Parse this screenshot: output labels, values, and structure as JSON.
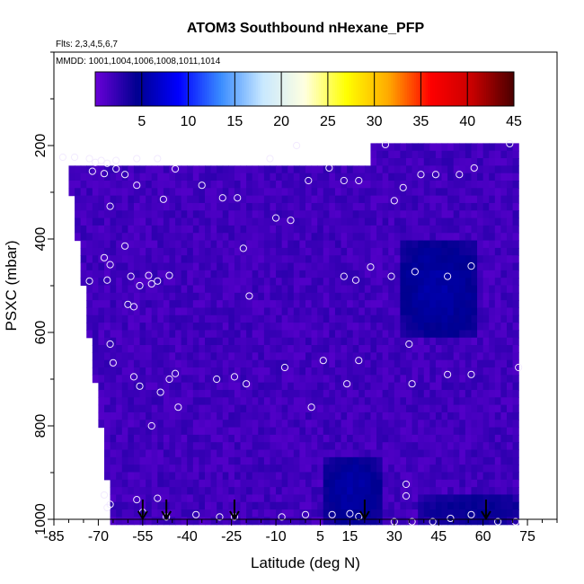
{
  "chart_data": {
    "type": "heatmap",
    "title": "ATOM3 Southbound nHexane_PFP",
    "subtitle_flights": "Flts: 2,3,4,5,6,7",
    "subtitle_dates": "MMDD: 1001,1004,1006,1008,1011,1014",
    "xlabel": "Latitude (deg N)",
    "ylabel": "PSXC (mbar)",
    "xlim": [
      -85,
      85
    ],
    "ylim": [
      1000,
      0
    ],
    "x_ticks": [
      -85,
      -70,
      -55,
      -40,
      -25,
      -10,
      5,
      15,
      30,
      45,
      60,
      75
    ],
    "y_ticks": [
      200,
      400,
      600,
      800,
      1000
    ],
    "colorbar": {
      "min": 0,
      "max": 45,
      "ticks": [
        5,
        10,
        15,
        20,
        25,
        30,
        35,
        40,
        45
      ],
      "stops": [
        "#6a00d8",
        "#000090",
        "#0000ff",
        "#3a8cff",
        "#c8e8ff",
        "#ffffe0",
        "#ffff00",
        "#ffaa00",
        "#ff0000",
        "#c80000",
        "#4a0000"
      ]
    },
    "field_region": {
      "lat_range": [
        -82,
        72
      ],
      "pres_range": [
        195,
        1000
      ],
      "upper_left_pressure_floor": 240,
      "upper_left_lat_limit": 22
    },
    "low_value_regions": [
      {
        "lat": [
          31,
          57
        ],
        "pres": [
          400,
          600
        ],
        "value": 5
      },
      {
        "lat": [
          6,
          24
        ],
        "pres": [
          860,
          1000
        ],
        "value": 5
      },
      {
        "lat": [
          38,
          72
        ],
        "pres": [
          940,
          1000
        ],
        "value": 4
      }
    ],
    "background_value": 1,
    "sample_points": [
      {
        "lat": -82,
        "p": 225
      },
      {
        "lat": -78,
        "p": 225
      },
      {
        "lat": -73,
        "p": 228
      },
      {
        "lat": -71,
        "p": 236
      },
      {
        "lat": -69,
        "p": 232
      },
      {
        "lat": -67,
        "p": 238
      },
      {
        "lat": -64,
        "p": 232
      },
      {
        "lat": -57,
        "p": 228
      },
      {
        "lat": -72,
        "p": 255
      },
      {
        "lat": -68,
        "p": 260
      },
      {
        "lat": -64,
        "p": 250
      },
      {
        "lat": -61,
        "p": 262
      },
      {
        "lat": -57,
        "p": 285
      },
      {
        "lat": -50,
        "p": 228
      },
      {
        "lat": -44,
        "p": 250
      },
      {
        "lat": -35,
        "p": 285
      },
      {
        "lat": -28,
        "p": 312
      },
      {
        "lat": -23,
        "p": 312
      },
      {
        "lat": -3,
        "p": 200
      },
      {
        "lat": 8,
        "p": 248
      },
      {
        "lat": 13,
        "p": 275
      },
      {
        "lat": 18,
        "p": 275
      },
      {
        "lat": 27,
        "p": 198
      },
      {
        "lat": -66,
        "p": 330
      },
      {
        "lat": -48,
        "p": 315
      },
      {
        "lat": -21,
        "p": 420
      },
      {
        "lat": -10,
        "p": 355
      },
      {
        "lat": -5,
        "p": 360
      },
      {
        "lat": 1,
        "p": 275
      },
      {
        "lat": -12,
        "p": 228
      },
      {
        "lat": 30,
        "p": 318
      },
      {
        "lat": 33,
        "p": 290
      },
      {
        "lat": 39,
        "p": 262
      },
      {
        "lat": 44,
        "p": 262
      },
      {
        "lat": 52,
        "p": 262
      },
      {
        "lat": 57,
        "p": 248
      },
      {
        "lat": 69,
        "p": 196
      },
      {
        "lat": -61,
        "p": 415
      },
      {
        "lat": -68,
        "p": 440
      },
      {
        "lat": -66,
        "p": 455
      },
      {
        "lat": -73,
        "p": 490
      },
      {
        "lat": -67,
        "p": 488
      },
      {
        "lat": -59,
        "p": 480
      },
      {
        "lat": -53,
        "p": 478
      },
      {
        "lat": -56,
        "p": 500
      },
      {
        "lat": -52,
        "p": 496
      },
      {
        "lat": -50,
        "p": 490
      },
      {
        "lat": -46,
        "p": 478
      },
      {
        "lat": -60,
        "p": 540
      },
      {
        "lat": -58,
        "p": 545
      },
      {
        "lat": -19,
        "p": 522
      },
      {
        "lat": 13,
        "p": 480
      },
      {
        "lat": 17,
        "p": 488
      },
      {
        "lat": 22,
        "p": 460
      },
      {
        "lat": 29,
        "p": 480
      },
      {
        "lat": 37,
        "p": 470
      },
      {
        "lat": 48,
        "p": 480
      },
      {
        "lat": 56,
        "p": 458
      },
      {
        "lat": -66,
        "p": 625
      },
      {
        "lat": -65,
        "p": 665
      },
      {
        "lat": -58,
        "p": 695
      },
      {
        "lat": -56,
        "p": 715
      },
      {
        "lat": -49,
        "p": 728
      },
      {
        "lat": -46,
        "p": 700
      },
      {
        "lat": -44,
        "p": 688
      },
      {
        "lat": -43,
        "p": 760
      },
      {
        "lat": -52,
        "p": 800
      },
      {
        "lat": -30,
        "p": 700
      },
      {
        "lat": -24,
        "p": 695
      },
      {
        "lat": -20,
        "p": 710
      },
      {
        "lat": -7,
        "p": 675
      },
      {
        "lat": 6,
        "p": 660
      },
      {
        "lat": 14,
        "p": 710
      },
      {
        "lat": 18,
        "p": 660
      },
      {
        "lat": 2,
        "p": 760
      },
      {
        "lat": 35,
        "p": 625
      },
      {
        "lat": 36,
        "p": 710
      },
      {
        "lat": 48,
        "p": 690
      },
      {
        "lat": 56,
        "p": 690
      },
      {
        "lat": 72,
        "p": 675
      },
      {
        "lat": -68,
        "p": 948
      },
      {
        "lat": -66,
        "p": 968
      },
      {
        "lat": -67,
        "p": 975
      },
      {
        "lat": -57,
        "p": 958
      },
      {
        "lat": -50,
        "p": 955
      },
      {
        "lat": -55,
        "p": 985
      },
      {
        "lat": -47,
        "p": 995
      },
      {
        "lat": -37,
        "p": 990
      },
      {
        "lat": -29,
        "p": 995
      },
      {
        "lat": -24,
        "p": 995
      },
      {
        "lat": -8,
        "p": 995
      },
      {
        "lat": 0,
        "p": 990
      },
      {
        "lat": 9,
        "p": 990
      },
      {
        "lat": 15,
        "p": 988
      },
      {
        "lat": 18,
        "p": 994
      },
      {
        "lat": 34,
        "p": 925
      },
      {
        "lat": 34,
        "p": 950
      },
      {
        "lat": 30,
        "p": 1005
      },
      {
        "lat": 36,
        "p": 1005
      },
      {
        "lat": 43,
        "p": 1005
      },
      {
        "lat": 49,
        "p": 998
      },
      {
        "lat": 56,
        "p": 990
      },
      {
        "lat": 65,
        "p": 1005
      },
      {
        "lat": 71,
        "p": 1005
      }
    ],
    "arrow_latitudes": [
      -55,
      -47,
      -24,
      20,
      61
    ]
  }
}
